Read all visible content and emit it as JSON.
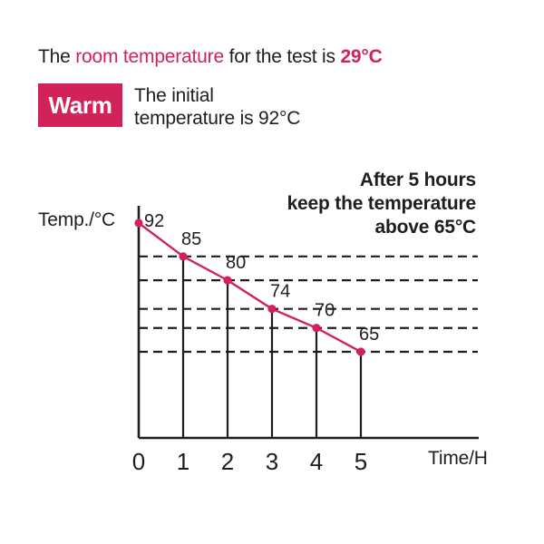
{
  "colors": {
    "accent": "#d1235a",
    "ink": "#1f1d1e",
    "background": "#ffffff"
  },
  "headline": {
    "p1": "The ",
    "p2": "room temperature",
    "p3": " for the test is ",
    "p4": "29°C"
  },
  "badge": {
    "label": "Warm"
  },
  "intro": {
    "line1": "The initial",
    "line2": "temperature is 92°C"
  },
  "annotation": {
    "line1": "After 5 hours",
    "line2": "keep the temperature",
    "line3": "above 65°C"
  },
  "chart_data": {
    "type": "line",
    "x": [
      0,
      1,
      2,
      3,
      4,
      5
    ],
    "values": [
      92,
      85,
      80,
      74,
      70,
      65
    ],
    "point_labels": [
      "92",
      "85",
      "80",
      "74",
      "70",
      "65"
    ],
    "x_tick_labels": [
      "0",
      "1",
      "2",
      "3",
      "4",
      "5"
    ],
    "xlabel": "Time/H",
    "ylabel": "Temp./°C",
    "title": "",
    "ylim": [
      60,
      96
    ],
    "xlim": [
      0,
      7.6
    ],
    "grid": "dashed horizontal gridline through every data point except the first",
    "drop_lines": "solid vertical line from each data point down to the x-axis",
    "legend": "none",
    "marker": "filled circle",
    "line_color": "#d1235a"
  }
}
